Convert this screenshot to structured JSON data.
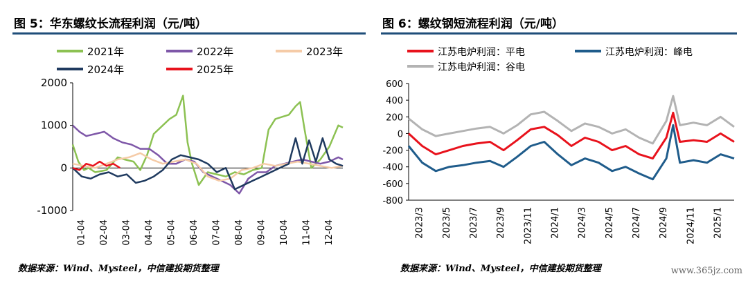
{
  "panels": {
    "left": {
      "title": "图 5：华东螺纹长流程利润（元/吨）",
      "source": "数据来源：Wind、Mysteel，中信建投期货整理"
    },
    "right": {
      "title": "图 6：螺纹钢短流程利润（元/吨）",
      "source": "数据来源：Wind、Mysteel，中信建投期货整理"
    }
  },
  "watermark": "www.365jz.com",
  "chart_data": [
    {
      "type": "line",
      "title": "图 5：华东螺纹长流程利润（元/吨）",
      "ylim": [
        -1000,
        2000
      ],
      "yticks": [
        -1000,
        0,
        1000,
        2000
      ],
      "x_ticks": [
        "01-04",
        "02-04",
        "03-04",
        "04-04",
        "05-04",
        "06-04",
        "07-04",
        "08-04",
        "09-04",
        "10-04",
        "11-04",
        "12-04"
      ],
      "x_range": [
        0,
        12
      ],
      "legend_position": "top",
      "series": [
        {
          "name": "2021年",
          "color": "#8cc152",
          "x": [
            0,
            0.25,
            0.5,
            0.7,
            1,
            1.5,
            2,
            2.3,
            2.7,
            3,
            3.3,
            3.6,
            4,
            4.3,
            4.6,
            4.9,
            5.1,
            5.3,
            5.6,
            6,
            6.4,
            6.8,
            7.2,
            7.6,
            8,
            8.4,
            8.7,
            9,
            9.3,
            9.6,
            9.9,
            10.1,
            10.3,
            10.6,
            11,
            11.4,
            11.8,
            12
          ],
          "y": [
            550,
            150,
            -50,
            0,
            -100,
            -50,
            250,
            200,
            150,
            -50,
            300,
            800,
            1000,
            1150,
            1250,
            1700,
            600,
            100,
            -400,
            -100,
            -150,
            -200,
            -100,
            -150,
            -50,
            0,
            900,
            1150,
            1200,
            1250,
            1450,
            1550,
            900,
            0,
            200,
            500,
            1000,
            950
          ]
        },
        {
          "name": "2022年",
          "color": "#7e57a8",
          "x": [
            0,
            0.3,
            0.6,
            1,
            1.4,
            1.8,
            2.2,
            2.6,
            3,
            3.4,
            3.8,
            4.2,
            4.6,
            5,
            5.4,
            5.8,
            6.2,
            6.6,
            7,
            7.4,
            7.8,
            8.2,
            8.6,
            9,
            9.4,
            9.8,
            10.2,
            10.6,
            11,
            11.4,
            11.8,
            12
          ],
          "y": [
            1000,
            850,
            750,
            800,
            850,
            700,
            600,
            550,
            450,
            450,
            300,
            100,
            100,
            200,
            150,
            -100,
            -200,
            -300,
            -400,
            -600,
            -250,
            -100,
            -100,
            50,
            100,
            150,
            200,
            150,
            100,
            150,
            250,
            200
          ]
        },
        {
          "name": "2023年",
          "color": "#f5cba7",
          "x": [
            0,
            0.5,
            1,
            1.5,
            2,
            2.5,
            3,
            3.5,
            4,
            4.5,
            5,
            5.5,
            6,
            6.5,
            7,
            7.5,
            8,
            8.5,
            9,
            9.5,
            10,
            10.5,
            11,
            11.5,
            12
          ],
          "y": [
            100,
            50,
            0,
            100,
            200,
            250,
            350,
            200,
            100,
            150,
            200,
            100,
            -200,
            -300,
            -250,
            -50,
            0,
            100,
            50,
            100,
            150,
            100,
            50,
            0,
            50
          ]
        },
        {
          "name": "2024年",
          "color": "#1f3a5f",
          "x": [
            0,
            0.4,
            0.8,
            1.2,
            1.6,
            2,
            2.4,
            2.8,
            3.2,
            3.6,
            4,
            4.4,
            4.8,
            5.2,
            5.6,
            6,
            6.4,
            6.8,
            7.2,
            7.6,
            8,
            8.4,
            8.8,
            9.2,
            9.6,
            9.9,
            10.2,
            10.5,
            10.8,
            11.1,
            11.4,
            11.7,
            12
          ],
          "y": [
            0,
            -200,
            -250,
            -150,
            -100,
            -200,
            -150,
            -350,
            -300,
            -200,
            -50,
            200,
            300,
            250,
            200,
            100,
            -100,
            0,
            -500,
            -400,
            -300,
            -200,
            -100,
            0,
            100,
            700,
            100,
            650,
            150,
            700,
            200,
            100,
            50
          ]
        },
        {
          "name": "2025年",
          "color": "#e8121c",
          "x": [
            0,
            0.3,
            0.6,
            0.9,
            1.2,
            1.5,
            1.8,
            2.1
          ],
          "y": [
            0,
            -50,
            100,
            50,
            150,
            50,
            100,
            0
          ]
        }
      ]
    },
    {
      "type": "line",
      "title": "图 6：螺纹钢短流程利润（元/吨）",
      "ylim": [
        -800,
        600
      ],
      "yticks": [
        -800,
        -600,
        -400,
        -200,
        0,
        200,
        400,
        600
      ],
      "x_ticks": [
        "2023/3",
        "2023/5",
        "2023/7",
        "2023/9",
        "2023/11",
        "2024/1",
        "2024/3",
        "2024/5",
        "2024/7",
        "2024/9",
        "2024/11",
        "2025/1"
      ],
      "x_range": [
        0,
        24
      ],
      "legend_position": "top",
      "series": [
        {
          "name": "江苏电炉利润：平电",
          "color": "#e8121c",
          "x": [
            0,
            1,
            2,
            3,
            4,
            5,
            6,
            7,
            8,
            9,
            10,
            11,
            12,
            13,
            14,
            15,
            16,
            17,
            18,
            19,
            19.5,
            20,
            21,
            22,
            23,
            24
          ],
          "y": [
            0,
            -150,
            -250,
            -200,
            -150,
            -120,
            -100,
            -200,
            -80,
            50,
            80,
            -20,
            -150,
            -50,
            -100,
            -200,
            -150,
            -250,
            -300,
            -50,
            250,
            -100,
            -80,
            -100,
            0,
            -100
          ]
        },
        {
          "name": "江苏电炉利润：峰电",
          "color": "#1f5c8b",
          "x": [
            0,
            1,
            2,
            3,
            4,
            5,
            6,
            7,
            8,
            9,
            10,
            11,
            12,
            13,
            14,
            15,
            16,
            17,
            18,
            19,
            19.5,
            20,
            21,
            22,
            23,
            24
          ],
          "y": [
            -150,
            -350,
            -450,
            -400,
            -380,
            -350,
            -330,
            -400,
            -280,
            -150,
            -100,
            -250,
            -380,
            -300,
            -350,
            -450,
            -400,
            -480,
            -550,
            -300,
            100,
            -350,
            -320,
            -350,
            -250,
            -300
          ]
        },
        {
          "name": "江苏电炉利润：谷电",
          "color": "#b3b3b3",
          "x": [
            0,
            1,
            2,
            3,
            4,
            5,
            6,
            7,
            8,
            9,
            10,
            11,
            12,
            13,
            14,
            15,
            16,
            17,
            18,
            19,
            19.5,
            20,
            21,
            22,
            23,
            24
          ],
          "y": [
            180,
            50,
            -30,
            0,
            30,
            60,
            80,
            0,
            100,
            230,
            260,
            150,
            30,
            120,
            80,
            0,
            50,
            -50,
            -120,
            150,
            450,
            100,
            130,
            100,
            200,
            80
          ]
        }
      ]
    }
  ]
}
